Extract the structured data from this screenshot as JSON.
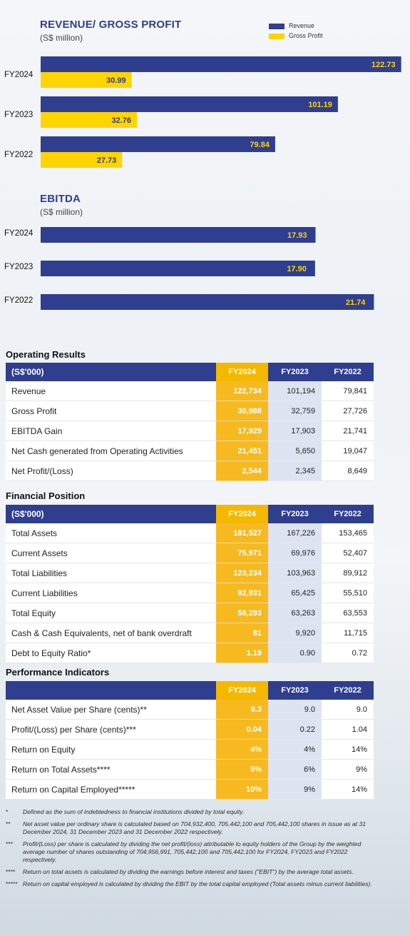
{
  "chart_data": [
    {
      "type": "bar",
      "orientation": "horizontal",
      "title": "REVENUE/ GROSS PROFIT",
      "subtitle": "(S$ million)",
      "categories": [
        "FY2024",
        "FY2023",
        "FY2022"
      ],
      "series": [
        {
          "name": "Revenue",
          "color": "#2f3e8f",
          "values": [
            122.73,
            101.19,
            79.84
          ],
          "labels": [
            "122.73",
            "101.19",
            "79.84"
          ]
        },
        {
          "name": "Gross Profit",
          "color": "#ffd400",
          "values": [
            30.99,
            32.76,
            27.73
          ],
          "labels": [
            "30.99",
            "32.76",
            "27.73"
          ]
        }
      ],
      "legend": "top-right",
      "grid": false
    },
    {
      "type": "bar",
      "orientation": "horizontal",
      "title": "EBITDA",
      "subtitle": "(S$ million)",
      "categories": [
        "FY2024",
        "FY2023",
        "FY2022"
      ],
      "series": [
        {
          "color": "#2f3e8f",
          "values": [
            17.93,
            17.9,
            21.74
          ],
          "labels": [
            "17.93",
            "17.90",
            "21.74"
          ]
        }
      ],
      "grid": false
    }
  ],
  "tables": {
    "operating": {
      "title": "Operating Results",
      "header": {
        "label": "(S$'000)",
        "c1": "FY2024",
        "c2": "FY2023",
        "c3": "FY2022"
      },
      "rows": [
        {
          "label": "Revenue",
          "v": [
            "122,734",
            "101,194",
            "79,841"
          ]
        },
        {
          "label": "Gross Profit",
          "v": [
            "30,988",
            "32,759",
            "27,726"
          ]
        },
        {
          "label": "EBITDA Gain",
          "v": [
            "17,929",
            "17,903",
            "21,741"
          ]
        },
        {
          "label": "Net Cash generated from Operating Activities",
          "v": [
            "21,451",
            "5,650",
            "19,047"
          ]
        },
        {
          "label": "Net Profit/(Loss)",
          "v": [
            "2,544",
            "2,345",
            "8,649"
          ]
        }
      ]
    },
    "financial": {
      "title": "Financial Position",
      "header": {
        "label": "(S$'000)",
        "c1": "FY2024",
        "c2": "FY2023",
        "c3": "FY2022"
      },
      "rows": [
        {
          "label": "Total Assets",
          "v": [
            "181,527",
            "167,226",
            "153,465"
          ]
        },
        {
          "label": "Current Assets",
          "v": [
            "75,971",
            "69,976",
            "52,407"
          ]
        },
        {
          "label": "Total Liabilities",
          "v": [
            "123,234",
            "103,963",
            "89,912"
          ]
        },
        {
          "label": "Current Liabilities",
          "v": [
            "92,931",
            "65,425",
            "55,510"
          ]
        },
        {
          "label": "Total Equity",
          "v": [
            "58,293",
            "63,263",
            "63,553"
          ]
        },
        {
          "label": "Cash & Cash Equivalents, net of bank overdraft",
          "v": [
            "81",
            "9,920",
            "11,715"
          ]
        },
        {
          "label": "Debt to Equity Ratio*",
          "v": [
            "1.19",
            "0.90",
            "0.72"
          ]
        }
      ]
    },
    "performance": {
      "title": "Performance Indicators",
      "header": {
        "label": "",
        "c1": "FY2024",
        "c2": "FY2023",
        "c3": "FY2022"
      },
      "rows": [
        {
          "label": "Net Asset Value per Share (cents)**",
          "v": [
            "8.3",
            "9.0",
            "9.0"
          ]
        },
        {
          "label": "Profit/(Loss) per Share (cents)***",
          "v": [
            "0.04",
            "0.22",
            "1.04"
          ]
        },
        {
          "label": "Return on Equity",
          "v": [
            "4%",
            "4%",
            "14%"
          ]
        },
        {
          "label": "Return on Total Assets****",
          "v": [
            "5%",
            "6%",
            "9%"
          ]
        },
        {
          "label": "Return on Capital Employed*****",
          "v": [
            "10%",
            "9%",
            "14%"
          ]
        }
      ]
    }
  },
  "notes": [
    {
      "mark": "*",
      "text": "Defined as the sum of indebtedness to financial institutions divided by total equity."
    },
    {
      "mark": "**",
      "text": "Net asset value per ordinary share is calculated based on 704,932,400, 705,442,100 and 705,442,100 shares in issue as at 31 December 2024, 31 December 2023 and 31 December 2022 respectively."
    },
    {
      "mark": "***",
      "text": "Profit/(Loss) per share is calculated by dividing the net profit/(loss) attributable to equity holders of the Group by the weighted average number of shares outstanding of 704,956,991, 705,442,100 and 705,442,100 for FY2024, FY2023 and FY2022 respectively."
    },
    {
      "mark": "****",
      "text": "Return on total assets is calculated by dividing the earnings before interest and taxes (\"EBIT\") by the average total assets."
    },
    {
      "mark": "*****",
      "text": "Return on capital employed is calculated by dividing the EBIT by the total capital employed (Total assets minus current liabilities)."
    }
  ]
}
